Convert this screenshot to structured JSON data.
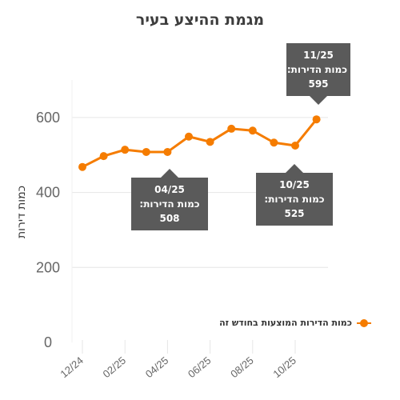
{
  "chart_data": {
    "type": "line",
    "title": "מגמת ההיצע בעיר",
    "xlabel": "",
    "ylabel": "כמות דירות",
    "categories": [
      "12/24",
      "01/25",
      "02/25",
      "03/25",
      "04/25",
      "05/25",
      "06/25",
      "07/25",
      "08/25",
      "09/25",
      "10/25",
      "11/25"
    ],
    "tick_labels": [
      "12/24",
      "02/25",
      "04/25",
      "06/25",
      "08/25",
      "10/25"
    ],
    "series": [
      {
        "name": "כמות הדירות המוצעות בחודש זה",
        "values": [
          468,
          497,
          514,
          508,
          508,
          549,
          535,
          570,
          565,
          533,
          525,
          595
        ],
        "color": "#f57c00"
      }
    ],
    "yticks": [
      0,
      200,
      400,
      600
    ],
    "ylim": [
      0,
      700
    ],
    "grid": true,
    "legend_position": "bottom-right",
    "annotations": [
      {
        "date": "11/25",
        "label": "כמות הדירות:",
        "value": "595",
        "index": 11
      },
      {
        "date": "04/25",
        "label": "כמות הדירות:",
        "value": "508",
        "index": 4
      },
      {
        "date": "10/25",
        "label": "כמות הדירות:",
        "value": "525",
        "index": 10
      }
    ]
  }
}
